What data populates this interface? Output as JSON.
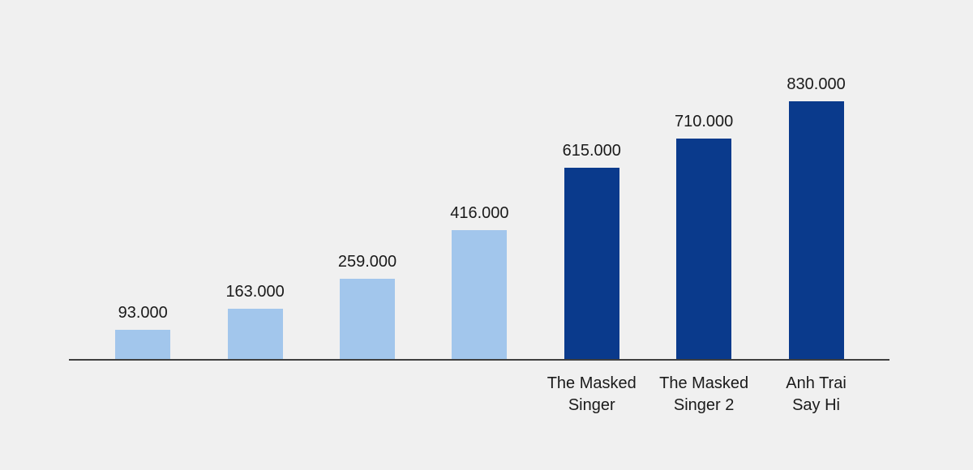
{
  "chart_data": {
    "type": "bar",
    "categories": [
      "",
      "",
      "",
      "",
      "The Masked Singer",
      "The Masked Singer 2",
      "Anh Trai Say Hi"
    ],
    "category_lines": [
      [],
      [],
      [],
      [],
      [
        "The Masked",
        "Singer"
      ],
      [
        "The Masked",
        "Singer 2"
      ],
      [
        "Anh Trai",
        "Say Hi"
      ]
    ],
    "values": [
      93000,
      163000,
      259000,
      416000,
      615000,
      710000,
      830000
    ],
    "value_labels": [
      "93.000",
      "163.000",
      "259.000",
      "416.000",
      "615.000",
      "710.000",
      "830.000"
    ],
    "ylim": [
      0,
      830000
    ],
    "grid": false,
    "legend": false,
    "bar_colors": [
      "light",
      "light",
      "light",
      "light",
      "dark",
      "dark",
      "dark"
    ],
    "colors": {
      "light": "#A2C6EC",
      "dark": "#0A3A8C"
    }
  },
  "page": {
    "background": "#F0F0F0",
    "axis_color": "#3F3F3F",
    "text_color": "#1A1A1A"
  }
}
